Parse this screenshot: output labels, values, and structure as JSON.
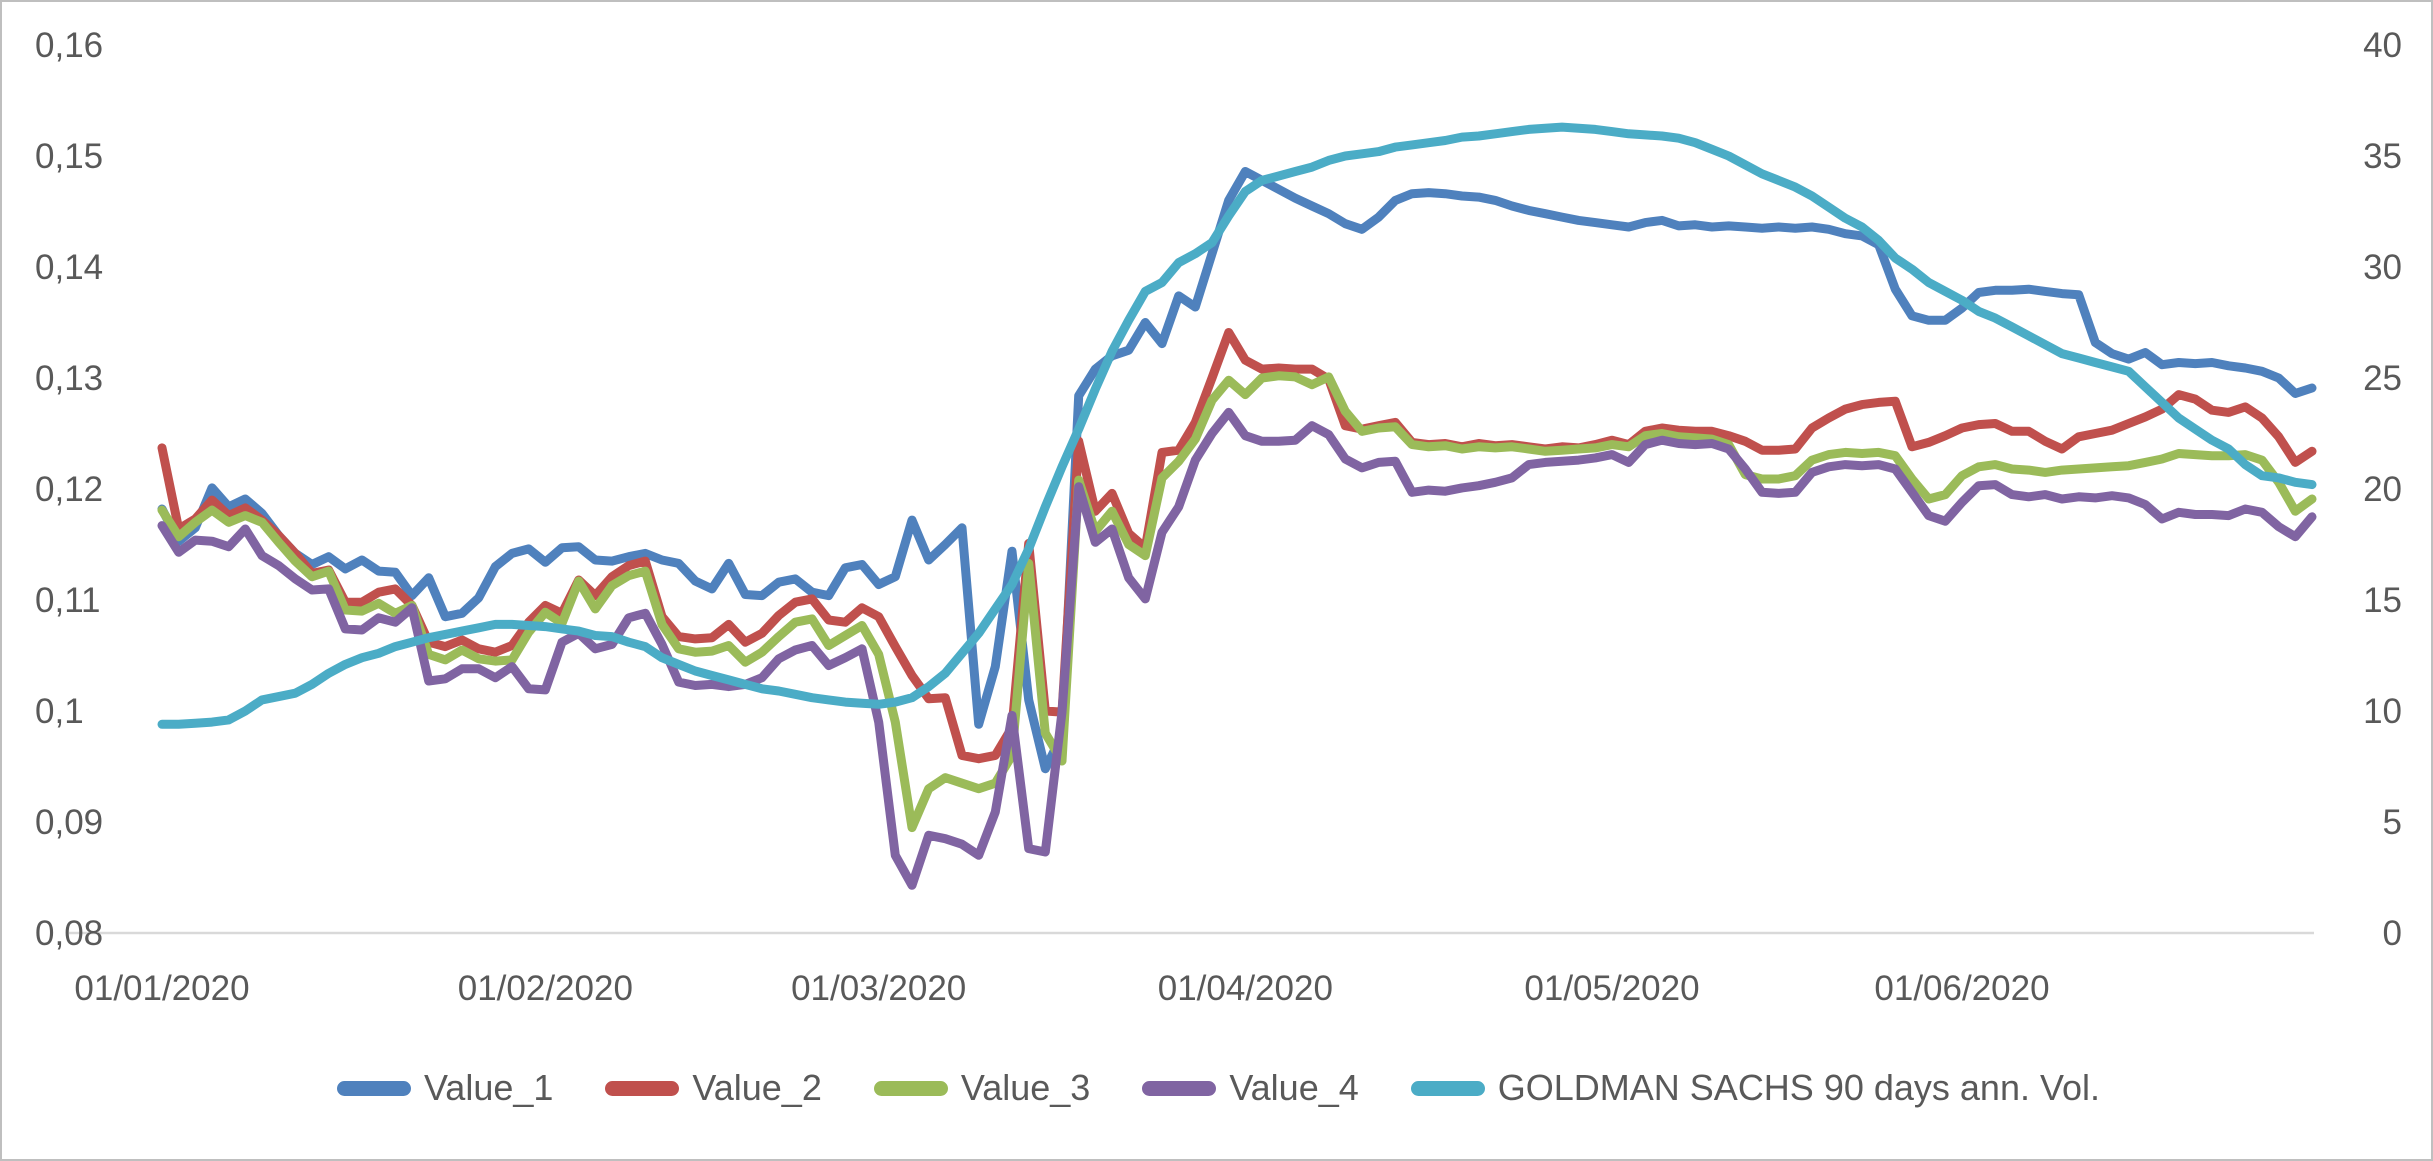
{
  "window": {
    "background": "#ffffff",
    "border_color": "#bfbfbf",
    "text_color": "#595959",
    "axis_line_color": "#d9d9d9"
  },
  "chart_data": {
    "type": "line",
    "title": "",
    "xlabel": "",
    "ylabel": "",
    "grid": false,
    "legend_position": "bottom",
    "n_points": 130,
    "x_axis": {
      "tick_labels": [
        "01/01/2020",
        "01/02/2020",
        "01/03/2020",
        "01/04/2020",
        "01/05/2020",
        "01/06/2020"
      ],
      "tick_indices": [
        0,
        23,
        43,
        65,
        87,
        108
      ],
      "note": "daily (weekday) observations 01/01/2020 - 30/06/2020"
    },
    "y_axis_left": {
      "min": 0.08,
      "max": 0.16,
      "ticks": [
        "0,16",
        "0,15",
        "0,14",
        "0,13",
        "0,12",
        "0,11",
        "0,1",
        "0,09",
        "0,08"
      ],
      "tick_values": [
        0.16,
        0.15,
        0.14,
        0.13,
        0.12,
        0.11,
        0.1,
        0.09,
        0.08
      ],
      "decimal_separator": ","
    },
    "y_axis_right": {
      "min": 0,
      "max": 40,
      "ticks": [
        "40",
        "35",
        "30",
        "25",
        "20",
        "15",
        "10",
        "5",
        "0"
      ],
      "tick_values": [
        40,
        35,
        30,
        25,
        20,
        15,
        10,
        5,
        0
      ]
    },
    "series": [
      {
        "name": "Value_1",
        "color": "#4F81BD",
        "axis": "left",
        "values": [
          0.1182,
          0.1153,
          0.1165,
          0.1201,
          0.1184,
          0.1191,
          0.1178,
          0.1158,
          0.1142,
          0.1132,
          0.1139,
          0.1128,
          0.1136,
          0.1126,
          0.1125,
          0.1104,
          0.112,
          0.1085,
          0.1088,
          0.1102,
          0.113,
          0.1142,
          0.1146,
          0.1134,
          0.1147,
          0.1148,
          0.1136,
          0.1135,
          0.1139,
          0.1142,
          0.1136,
          0.1133,
          0.1117,
          0.111,
          0.1133,
          0.1105,
          0.1104,
          0.1116,
          0.1119,
          0.1107,
          0.1104,
          0.1129,
          0.1132,
          0.1114,
          0.1121,
          0.1172,
          0.1136,
          0.115,
          0.1165,
          0.0988,
          0.104,
          0.1144,
          0.101,
          0.0948,
          0.0978,
          0.1284,
          0.1308,
          0.132,
          0.1325,
          0.135,
          0.1331,
          0.1374,
          0.1364,
          0.1412,
          0.146,
          0.1486,
          0.1478,
          0.147,
          0.1462,
          0.1455,
          0.1448,
          0.1439,
          0.1434,
          0.1445,
          0.146,
          0.1466,
          0.1467,
          0.1466,
          0.1464,
          0.1463,
          0.146,
          0.1455,
          0.1451,
          0.1448,
          0.1445,
          0.1442,
          0.144,
          0.1438,
          0.1436,
          0.144,
          0.1442,
          0.1437,
          0.1438,
          0.1436,
          0.1437,
          0.1436,
          0.1435,
          0.1436,
          0.1435,
          0.1436,
          0.1434,
          0.143,
          0.1428,
          0.142,
          0.138,
          0.1356,
          0.1352,
          0.1352,
          0.1363,
          0.1377,
          0.1379,
          0.1379,
          0.138,
          0.1378,
          0.1376,
          0.1375,
          0.1332,
          0.1322,
          0.1317,
          0.1323,
          0.1312,
          0.1314,
          0.1313,
          0.1314,
          0.1311,
          0.1309,
          0.1306,
          0.13,
          0.1286,
          0.1291
        ]
      },
      {
        "name": "Value_2",
        "color": "#C0504D",
        "axis": "left",
        "values": [
          0.1237,
          0.1164,
          0.1173,
          0.119,
          0.1176,
          0.1183,
          0.1172,
          0.1158,
          0.1142,
          0.1124,
          0.1127,
          0.1098,
          0.1098,
          0.1107,
          0.111,
          0.1095,
          0.1062,
          0.1058,
          0.1064,
          0.1056,
          0.1053,
          0.1059,
          0.108,
          0.1095,
          0.1088,
          0.1118,
          0.1104,
          0.1121,
          0.1131,
          0.1135,
          0.1085,
          0.1067,
          0.1065,
          0.1066,
          0.1078,
          0.1062,
          0.107,
          0.1086,
          0.1098,
          0.1101,
          0.1082,
          0.108,
          0.1093,
          0.1085,
          0.1058,
          0.1032,
          0.1011,
          0.1012,
          0.096,
          0.0957,
          0.096,
          0.0985,
          0.1151,
          0.1,
          0.0999,
          0.1243,
          0.118,
          0.1196,
          0.116,
          0.1147,
          0.1233,
          0.1235,
          0.126,
          0.13,
          0.1341,
          0.1316,
          0.1308,
          0.1309,
          0.1308,
          0.1308,
          0.1299,
          0.1257,
          0.1254,
          0.1257,
          0.126,
          0.1242,
          0.124,
          0.1241,
          0.1238,
          0.1241,
          0.1239,
          0.124,
          0.1238,
          0.1236,
          0.1238,
          0.1237,
          0.124,
          0.1244,
          0.124,
          0.1252,
          0.1255,
          0.1253,
          0.1252,
          0.1252,
          0.1248,
          0.1243,
          0.1235,
          0.1235,
          0.1236,
          0.1255,
          0.1264,
          0.1272,
          0.1276,
          0.1278,
          0.1279,
          0.1238,
          0.1242,
          0.1248,
          0.1255,
          0.1258,
          0.1259,
          0.1252,
          0.1252,
          0.1243,
          0.1236,
          0.1247,
          0.125,
          0.1253,
          0.1259,
          0.1265,
          0.1272,
          0.1285,
          0.1281,
          0.1271,
          0.1269,
          0.1274,
          0.1264,
          0.1247,
          0.1224,
          0.1234
        ]
      },
      {
        "name": "Value_3",
        "color": "#9BBB59",
        "axis": "left",
        "values": [
          0.1181,
          0.1157,
          0.117,
          0.1181,
          0.117,
          0.1176,
          0.117,
          0.1152,
          0.1135,
          0.1121,
          0.1126,
          0.1091,
          0.109,
          0.1097,
          0.1088,
          0.1095,
          0.1051,
          0.1046,
          0.1055,
          0.1047,
          0.1045,
          0.1046,
          0.1071,
          0.1089,
          0.1079,
          0.1117,
          0.1092,
          0.1113,
          0.1122,
          0.1126,
          0.1078,
          0.1056,
          0.1053,
          0.1054,
          0.1059,
          0.1044,
          0.1053,
          0.1067,
          0.108,
          0.1083,
          0.1059,
          0.1068,
          0.1077,
          0.1051,
          0.099,
          0.0895,
          0.093,
          0.094,
          0.0935,
          0.093,
          0.0935,
          0.096,
          0.1133,
          0.098,
          0.0955,
          0.1208,
          0.1162,
          0.118,
          0.115,
          0.114,
          0.121,
          0.1225,
          0.1245,
          0.128,
          0.1298,
          0.1285,
          0.13,
          0.1302,
          0.1301,
          0.1294,
          0.1301,
          0.127,
          0.1252,
          0.1255,
          0.1256,
          0.124,
          0.1238,
          0.1239,
          0.1236,
          0.1238,
          0.1237,
          0.1238,
          0.1236,
          0.1234,
          0.1235,
          0.1236,
          0.1237,
          0.124,
          0.1238,
          0.1248,
          0.125,
          0.1247,
          0.1246,
          0.1245,
          0.124,
          0.1213,
          0.1209,
          0.1209,
          0.1212,
          0.1226,
          0.1231,
          0.1233,
          0.1232,
          0.1233,
          0.123,
          0.1209,
          0.1191,
          0.1195,
          0.1212,
          0.122,
          0.1222,
          0.1218,
          0.1217,
          0.1215,
          0.1217,
          0.1218,
          0.1219,
          0.122,
          0.1221,
          0.1224,
          0.1227,
          0.1232,
          0.1231,
          0.123,
          0.123,
          0.1231,
          0.1226,
          0.1206,
          0.118,
          0.1191
        ]
      },
      {
        "name": "Value_4",
        "color": "#8064A2",
        "axis": "left",
        "values": [
          0.1167,
          0.1143,
          0.1154,
          0.1153,
          0.1148,
          0.1164,
          0.114,
          0.1131,
          0.1119,
          0.1109,
          0.111,
          0.1074,
          0.1073,
          0.1084,
          0.108,
          0.1093,
          0.1027,
          0.1029,
          0.1038,
          0.1038,
          0.103,
          0.104,
          0.102,
          0.1019,
          0.1062,
          0.107,
          0.1056,
          0.106,
          0.1084,
          0.1088,
          0.106,
          0.1026,
          0.1023,
          0.1024,
          0.1022,
          0.1024,
          0.103,
          0.1047,
          0.1055,
          0.1059,
          0.1041,
          0.1048,
          0.1056,
          0.099,
          0.087,
          0.0843,
          0.0888,
          0.0885,
          0.088,
          0.087,
          0.0909,
          0.0996,
          0.0876,
          0.0873,
          0.0999,
          0.1202,
          0.1152,
          0.1164,
          0.112,
          0.1101,
          0.1161,
          0.1184,
          0.1226,
          0.125,
          0.1269,
          0.1248,
          0.1243,
          0.1243,
          0.1244,
          0.1257,
          0.1249,
          0.1227,
          0.1219,
          0.1224,
          0.1225,
          0.1197,
          0.1199,
          0.1198,
          0.1201,
          0.1203,
          0.1206,
          0.121,
          0.1222,
          0.1224,
          0.1225,
          0.1226,
          0.1228,
          0.1231,
          0.1224,
          0.124,
          0.1244,
          0.1241,
          0.124,
          0.1241,
          0.1236,
          0.1218,
          0.1197,
          0.1196,
          0.1197,
          0.1215,
          0.122,
          0.1222,
          0.1221,
          0.1222,
          0.1218,
          0.1197,
          0.1176,
          0.1171,
          0.1188,
          0.1203,
          0.1204,
          0.1195,
          0.1193,
          0.1195,
          0.1191,
          0.1193,
          0.1192,
          0.1194,
          0.1192,
          0.1186,
          0.1173,
          0.1179,
          0.1177,
          0.1177,
          0.1176,
          0.1182,
          0.1179,
          0.1166,
          0.1157,
          0.1175
        ]
      },
      {
        "name": "GOLDMAN SACHS 90 days ann. Vol.",
        "color": "#4BACC6",
        "axis": "right",
        "values": [
          9.4,
          9.4,
          9.45,
          9.5,
          9.6,
          10.0,
          10.5,
          10.65,
          10.8,
          11.2,
          11.7,
          12.1,
          12.4,
          12.6,
          12.9,
          13.1,
          13.3,
          13.45,
          13.6,
          13.75,
          13.9,
          13.9,
          13.85,
          13.8,
          13.7,
          13.6,
          13.4,
          13.35,
          13.1,
          12.9,
          12.4,
          12.1,
          11.8,
          11.6,
          11.4,
          11.2,
          11.0,
          10.9,
          10.75,
          10.6,
          10.5,
          10.4,
          10.35,
          10.3,
          10.4,
          10.6,
          11.1,
          11.7,
          12.6,
          13.5,
          14.6,
          15.7,
          17.3,
          19.2,
          21.0,
          22.7,
          24.5,
          26.2,
          27.6,
          28.9,
          29.3,
          30.2,
          30.6,
          31.1,
          32.3,
          33.4,
          33.9,
          34.1,
          34.3,
          34.5,
          34.8,
          35.0,
          35.1,
          35.2,
          35.4,
          35.5,
          35.6,
          35.7,
          35.85,
          35.9,
          36.0,
          36.1,
          36.2,
          36.25,
          36.3,
          36.25,
          36.2,
          36.1,
          36.0,
          35.95,
          35.9,
          35.8,
          35.6,
          35.3,
          35.0,
          34.6,
          34.2,
          33.9,
          33.6,
          33.2,
          32.7,
          32.2,
          31.8,
          31.2,
          30.4,
          29.9,
          29.3,
          28.9,
          28.5,
          28.0,
          27.7,
          27.3,
          26.9,
          26.5,
          26.1,
          25.9,
          25.7,
          25.5,
          25.3,
          24.6,
          23.9,
          23.2,
          22.7,
          22.2,
          21.8,
          21.1,
          20.6,
          20.5,
          20.3,
          20.2
        ]
      }
    ]
  },
  "legend": {
    "items": [
      {
        "label": "Value_1",
        "color": "#4F81BD"
      },
      {
        "label": "Value_2",
        "color": "#C0504D"
      },
      {
        "label": "Value_3",
        "color": "#9BBB59"
      },
      {
        "label": "Value_4",
        "color": "#8064A2"
      },
      {
        "label": "GOLDMAN SACHS 90 days ann. Vol.",
        "color": "#4BACC6"
      }
    ]
  }
}
